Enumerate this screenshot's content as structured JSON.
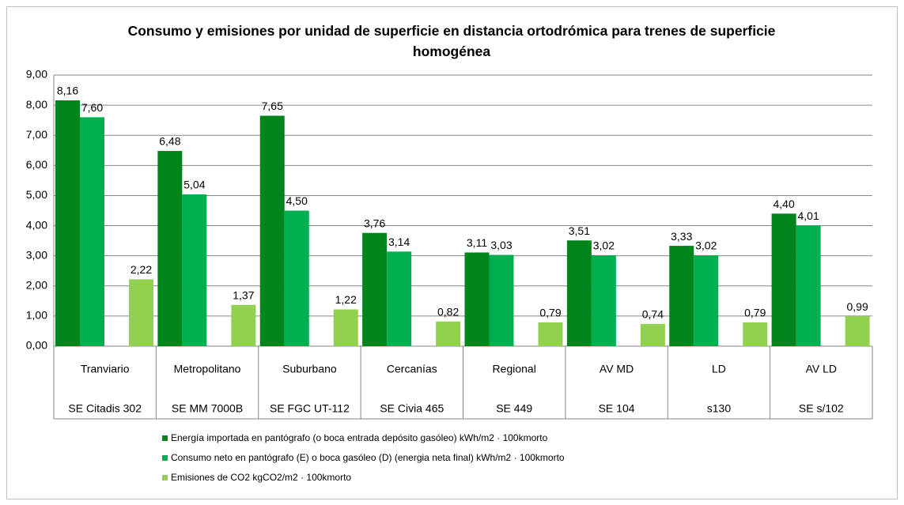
{
  "chart_data": {
    "type": "bar",
    "title": "Consumo y emisiones por unidad de superficie en distancia ortodrómica para trenes de superficie homogénea",
    "categories": [
      "Tranviario",
      "Metropolitano",
      "Suburbano",
      "Cercanías",
      "Regional",
      "AV MD",
      "LD",
      "AV LD"
    ],
    "subcategories": [
      "SE Citadis 302",
      "SE MM 7000B",
      "SE FGC UT-112",
      "SE Civia 465",
      "SE 449",
      "SE 104",
      "s130",
      "SE s/102"
    ],
    "series": [
      {
        "name": "Energía importada en pantógrafo (o boca entrada depósito gasóleo) kWh/m2 · 100kmorto",
        "color": "#00841c",
        "values": [
          8.16,
          6.48,
          7.65,
          3.76,
          3.11,
          3.51,
          3.33,
          4.4
        ],
        "value_labels": [
          "8,16",
          "6,48",
          "7,65",
          "3,76",
          "3,11",
          "3,51",
          "3,33",
          "4,40"
        ]
      },
      {
        "name": "Consumo neto en pantógrafo (E) o boca gasóleo (D) (energia neta final) kWh/m2 · 100kmorto",
        "color": "#00b050",
        "values": [
          7.6,
          5.04,
          4.5,
          3.14,
          3.03,
          3.02,
          3.02,
          4.01
        ],
        "value_labels": [
          "7,60",
          "5,04",
          "4,50",
          "3,14",
          "3,03",
          "3,02",
          "3,02",
          "4,01"
        ]
      },
      {
        "name": "Emisiones de CO2 kgCO2/m2 · 100kmorto",
        "color": "#92d050",
        "values": [
          2.22,
          1.37,
          1.22,
          0.82,
          0.79,
          0.74,
          0.79,
          0.99
        ],
        "value_labels": [
          "2,22",
          "1,37",
          "1,22",
          "0,82",
          "0,79",
          "0,74",
          "0,79",
          "0,99"
        ]
      }
    ],
    "ylim": [
      0,
      9
    ],
    "yticks": [
      {
        "value": 0,
        "label": "0,00"
      },
      {
        "value": 1,
        "label": "1,00"
      },
      {
        "value": 2,
        "label": "2,00"
      },
      {
        "value": 3,
        "label": "3,00"
      },
      {
        "value": 4,
        "label": "4,00"
      },
      {
        "value": 5,
        "label": "5,00"
      },
      {
        "value": 6,
        "label": "6,00"
      },
      {
        "value": 7,
        "label": "7,00"
      },
      {
        "value": 8,
        "label": "8,00"
      },
      {
        "value": 9,
        "label": "9,00"
      }
    ],
    "grid": true
  }
}
